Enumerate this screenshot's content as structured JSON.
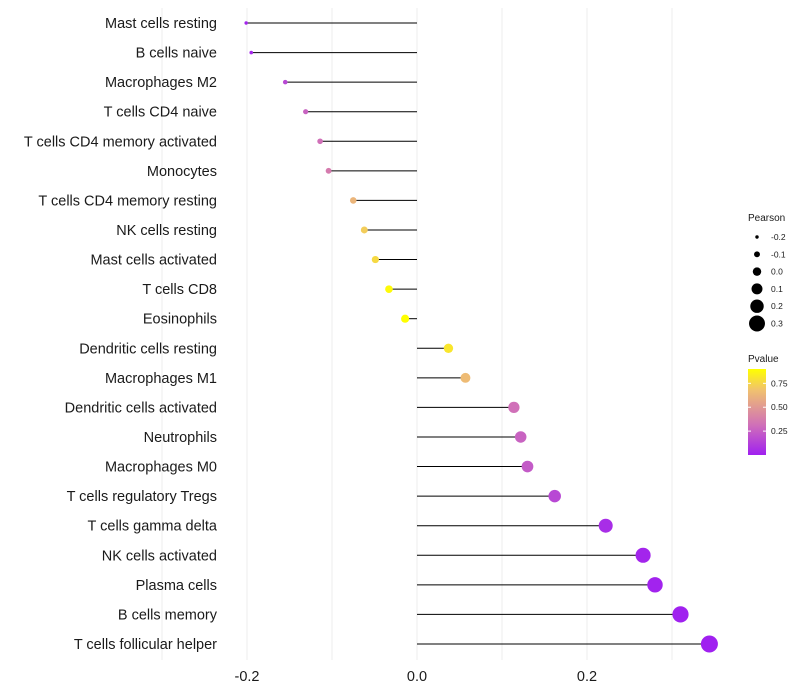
{
  "chart_data": {
    "type": "lollipop",
    "title": "",
    "xlabel": "",
    "ylabel": "",
    "xlim": [
      -0.2,
      0.35
    ],
    "x_ticks": [
      -0.2,
      0.0,
      0.2
    ],
    "x_tick_labels": [
      "-0.2",
      "0.0",
      "0.2"
    ],
    "grid": true,
    "baseline": 0,
    "categories": [
      "Mast cells resting",
      "B cells naive",
      "Macrophages M2",
      "T cells CD4 naive",
      "T cells CD4 memory activated",
      "Monocytes",
      "T cells CD4 memory resting",
      "NK cells resting",
      "Mast cells activated",
      "T cells CD8",
      "Eosinophils",
      "Dendritic cells resting",
      "Macrophages M1",
      "Dendritic cells activated",
      "Neutrophils",
      "Macrophages M0",
      "T cells regulatory  Tregs ",
      "T cells gamma delta",
      "NK cells activated",
      "Plasma cells",
      "B cells memory",
      "T cells follicular helper"
    ],
    "pearson": [
      -0.201,
      -0.195,
      -0.155,
      -0.131,
      -0.114,
      -0.104,
      -0.075,
      -0.062,
      -0.049,
      -0.033,
      -0.014,
      0.037,
      0.057,
      0.114,
      0.122,
      0.13,
      0.162,
      0.222,
      0.266,
      0.28,
      0.31,
      0.344
    ],
    "pvalue": [
      0.02,
      0.03,
      0.15,
      0.25,
      0.3,
      0.35,
      0.6,
      0.7,
      0.75,
      0.88,
      0.95,
      0.8,
      0.63,
      0.3,
      0.25,
      0.22,
      0.15,
      0.05,
      0.02,
      0.01,
      0.003,
      0.001
    ],
    "legend": {
      "pearson": {
        "title": "Pearson",
        "values": [
          -0.2,
          -0.1,
          0.0,
          0.1,
          0.2,
          0.3
        ],
        "labels": [
          "-0.2",
          "-0.1",
          "0.0",
          "0.1",
          "0.2",
          "0.3"
        ]
      },
      "pvalue": {
        "title": "Pvalue",
        "ticks": [
          0.25,
          0.5,
          0.75
        ],
        "tick_labels": [
          "0.25",
          "0.50",
          "0.75"
        ],
        "range": [
          0.0,
          0.9
        ],
        "colors": [
          "#a020f0",
          "#d070b8",
          "#f0c070",
          "#ffff00"
        ]
      }
    }
  }
}
